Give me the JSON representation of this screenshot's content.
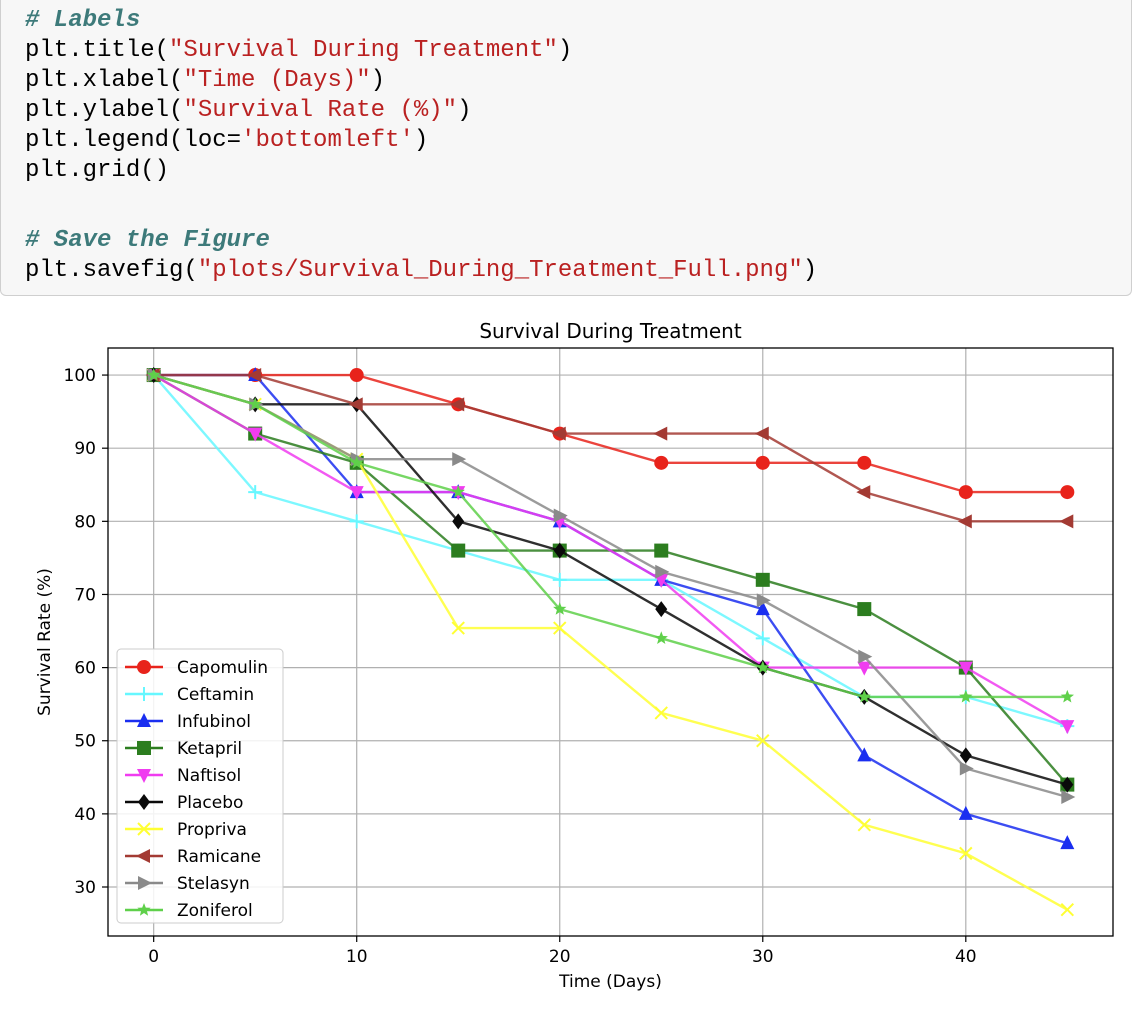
{
  "code": {
    "lines": [
      {
        "type": "comment",
        "text": "# Labels"
      },
      {
        "type": "call",
        "fn": "plt.title",
        "arg": "\"Survival During Treatment\""
      },
      {
        "type": "call",
        "fn": "plt.xlabel",
        "arg": "\"Time (Days)\""
      },
      {
        "type": "call",
        "fn": "plt.ylabel",
        "arg": "\"Survival Rate (%)\""
      },
      {
        "type": "kwcall",
        "fn": "plt.legend",
        "kw": "loc=",
        "arg": "'bottomleft'"
      },
      {
        "type": "plain",
        "text": "plt.grid()"
      },
      {
        "type": "blank",
        "text": ""
      },
      {
        "type": "comment",
        "text": "# Save the Figure"
      },
      {
        "type": "call",
        "fn": "plt.savefig",
        "arg": "\"plots/Survival_During_Treatment_Full.png\""
      }
    ]
  },
  "chart_data": {
    "type": "line",
    "title": "Survival During Treatment",
    "xlabel": "Time (Days)",
    "ylabel": "Survival Rate (%)",
    "xlim": [
      -2.25,
      47.25
    ],
    "ylim": [
      23.3,
      103.7
    ],
    "xticks": [
      0,
      10,
      20,
      30,
      40
    ],
    "yticks": [
      30,
      40,
      50,
      60,
      70,
      80,
      90,
      100
    ],
    "grid": true,
    "legend_position": "bottom-left",
    "x": [
      0,
      5,
      10,
      15,
      20,
      25,
      30,
      35,
      40,
      45
    ],
    "series": [
      {
        "name": "Capomulin",
        "color": "#e8231b",
        "marker": "circle",
        "values": [
          100,
          100,
          100,
          96,
          92,
          88,
          88,
          88,
          84,
          84
        ]
      },
      {
        "name": "Ceftamin",
        "color": "#66f7ff",
        "marker": "plus",
        "values": [
          100,
          84,
          80,
          76,
          72,
          72,
          64,
          56,
          56,
          52
        ]
      },
      {
        "name": "Infubinol",
        "color": "#1a2ef0",
        "marker": "triangle-up",
        "values": [
          100,
          100,
          84,
          84,
          80,
          72,
          68,
          48,
          40,
          36
        ]
      },
      {
        "name": "Ketapril",
        "color": "#2c7d1f",
        "marker": "square",
        "values": [
          100,
          92,
          88,
          76,
          76,
          76,
          72,
          68,
          60,
          44
        ]
      },
      {
        "name": "Naftisol",
        "color": "#f03cf0",
        "marker": "triangle-down",
        "values": [
          100,
          92,
          84,
          84,
          80,
          72,
          60,
          60,
          60,
          52
        ]
      },
      {
        "name": "Placebo",
        "color": "#0a0a0a",
        "marker": "diamond",
        "values": [
          100,
          96,
          96,
          80,
          76,
          68,
          60,
          56,
          48,
          44
        ]
      },
      {
        "name": "Propriva",
        "color": "#ffff33",
        "marker": "x",
        "values": [
          100,
          96,
          88.5,
          65.4,
          65.4,
          53.8,
          50,
          38.5,
          34.6,
          26.9
        ]
      },
      {
        "name": "Ramicane",
        "color": "#a33a33",
        "marker": "triangle-left",
        "values": [
          100,
          100,
          96,
          96,
          92,
          92,
          92,
          84,
          80,
          80
        ]
      },
      {
        "name": "Stelasyn",
        "color": "#8a8a8a",
        "marker": "triangle-right",
        "values": [
          100,
          96,
          88.5,
          88.5,
          80.8,
          73.1,
          69.2,
          61.5,
          46.2,
          42.3
        ]
      },
      {
        "name": "Zoniferol",
        "color": "#5fd04a",
        "marker": "star",
        "values": [
          100,
          96,
          88,
          84,
          68,
          64,
          60,
          56,
          56,
          56
        ]
      }
    ]
  }
}
